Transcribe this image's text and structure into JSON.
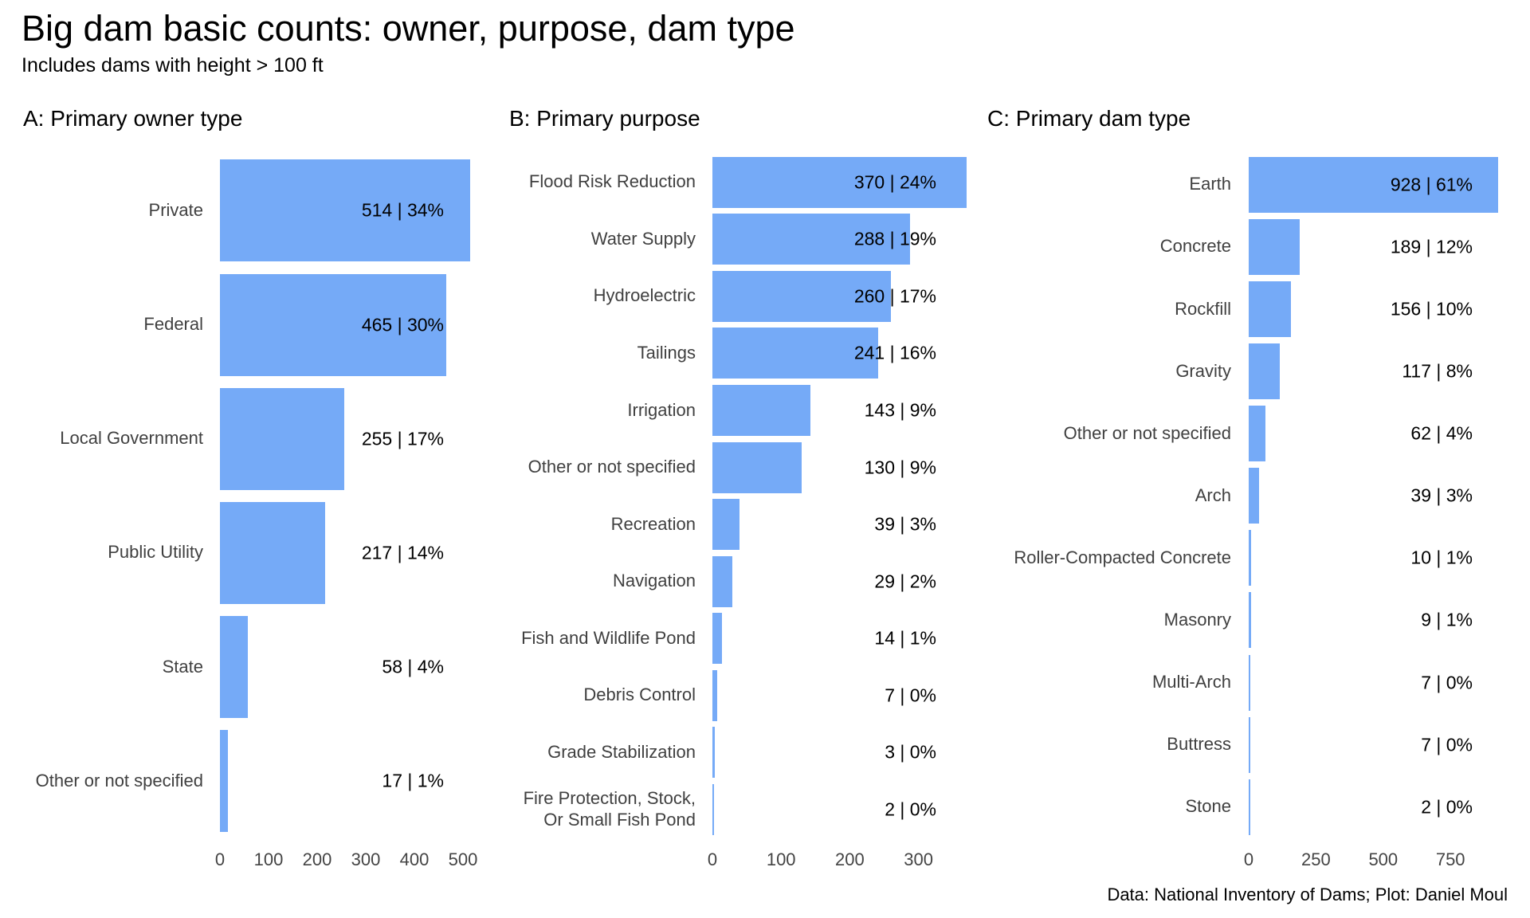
{
  "title": "Big dam basic counts: owner, purpose, dam type",
  "subtitle": "Includes dams with height > 100 ft",
  "caption": "Data: National Inventory of Dams; Plot: Daniel Moul",
  "colors": {
    "bar": "#75aaf7",
    "category_label": "#404040",
    "value_label": "#000000",
    "axis_tick": "#444444"
  },
  "chart_data": [
    {
      "panel": "A",
      "title": "A: Primary owner type",
      "type": "bar",
      "orientation": "horizontal",
      "categories": [
        "Private",
        "Federal",
        "Local Government",
        "Public Utility",
        "State",
        "Other or not specified"
      ],
      "values": [
        514,
        465,
        255,
        217,
        58,
        17
      ],
      "percents": [
        34,
        30,
        17,
        14,
        4,
        1
      ],
      "bar_labels": [
        "514 | 34%",
        "465 | 30%",
        "255 | 17%",
        "217 | 14%",
        "58 | 4%",
        "17 | 1%"
      ],
      "xlabel": "",
      "ylabel": "",
      "axis_ticks": [
        0,
        100,
        200,
        300,
        400,
        500
      ],
      "xlim": [
        0,
        514
      ],
      "grid": false,
      "legend": "none"
    },
    {
      "panel": "B",
      "title": "B: Primary purpose",
      "type": "bar",
      "orientation": "horizontal",
      "categories": [
        "Flood Risk Reduction",
        "Water Supply",
        "Hydroelectric",
        "Tailings",
        "Irrigation",
        "Other or not specified",
        "Recreation",
        "Navigation",
        "Fish and Wildlife Pond",
        "Debris Control",
        "Grade Stabilization",
        "Fire Protection, Stock,\nOr Small Fish Pond"
      ],
      "values": [
        370,
        288,
        260,
        241,
        143,
        130,
        39,
        29,
        14,
        7,
        3,
        2
      ],
      "percents": [
        24,
        19,
        17,
        16,
        9,
        9,
        3,
        2,
        1,
        0,
        0,
        0
      ],
      "bar_labels": [
        "370 | 24%",
        "288 | 19%",
        "260 | 17%",
        "241 | 16%",
        "143 | 9%",
        "130 | 9%",
        "39 | 3%",
        "29 | 2%",
        "14 | 1%",
        "7 | 0%",
        "3 | 0%",
        "2 | 0%"
      ],
      "xlabel": "",
      "ylabel": "",
      "axis_ticks": [
        0,
        100,
        200,
        300
      ],
      "xlim": [
        0,
        370
      ],
      "grid": false,
      "legend": "none"
    },
    {
      "panel": "C",
      "title": "C: Primary dam type",
      "type": "bar",
      "orientation": "horizontal",
      "categories": [
        "Earth",
        "Concrete",
        "Rockfill",
        "Gravity",
        "Other or not specified",
        "Arch",
        "Roller-Compacted Concrete",
        "Masonry",
        "Multi-Arch",
        "Buttress",
        "Stone"
      ],
      "values": [
        928,
        189,
        156,
        117,
        62,
        39,
        10,
        9,
        7,
        7,
        2
      ],
      "percents": [
        61,
        12,
        10,
        8,
        4,
        3,
        1,
        1,
        0,
        0,
        0
      ],
      "bar_labels": [
        "928 | 61%",
        "189 | 12%",
        "156 | 10%",
        "117 | 8%",
        "62 | 4%",
        "39 | 3%",
        "10 | 1%",
        "9 | 1%",
        "7 | 0%",
        "7 | 0%",
        "2 | 0%"
      ],
      "xlabel": "",
      "ylabel": "",
      "axis_ticks": [
        0,
        250,
        500,
        750
      ],
      "xlim": [
        0,
        928
      ],
      "grid": false,
      "legend": "none"
    }
  ]
}
